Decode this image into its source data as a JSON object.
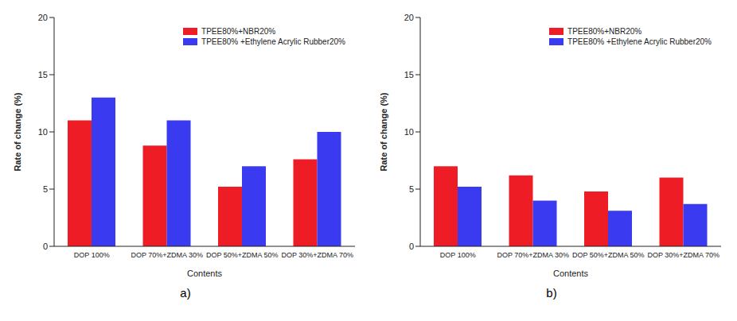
{
  "chart_data": [
    {
      "type": "bar",
      "title": "a)",
      "x_label": "Contents",
      "y_label": "Rate of change (%)",
      "categories": [
        "DOP 100%",
        "DOP 70%+ZDMA 30%",
        "DOP 50%+ZDMA 50%",
        "DOP 30%+ZDMA 70%"
      ],
      "series": [
        {
          "name": "TPEE80%+NBR20%",
          "color": "#ee1c25",
          "values": [
            11,
            8.8,
            5.2,
            7.6
          ]
        },
        {
          "name": "TPEE80% +Ethylene Acrylic Rubber20%",
          "color": "#3a3af0",
          "values": [
            13,
            11,
            7,
            10
          ]
        }
      ],
      "ylim": [
        0,
        20
      ],
      "yticks": [
        0,
        5,
        10,
        15,
        20
      ],
      "legend": "upper right"
    },
    {
      "type": "bar",
      "title": "b)",
      "x_label": "Contents",
      "y_label": "Rate of change (%)",
      "categories": [
        "DOP 100%",
        "DOP 70%+ZDMA 30%",
        "DOP 50%+ZDMA 50%",
        "DOP 30%+ZDMA 70%"
      ],
      "series": [
        {
          "name": "TPEE80%+NBR20%",
          "color": "#ee1c25",
          "values": [
            7,
            6.2,
            4.8,
            6
          ]
        },
        {
          "name": "TPEE80% +Ethylene Acrylic Rubber20%",
          "color": "#3a3af0",
          "values": [
            5.2,
            4,
            3.1,
            3.7
          ]
        }
      ],
      "ylim": [
        0,
        20
      ],
      "yticks": [
        0,
        5,
        10,
        15,
        20
      ],
      "legend": "upper right"
    }
  ]
}
